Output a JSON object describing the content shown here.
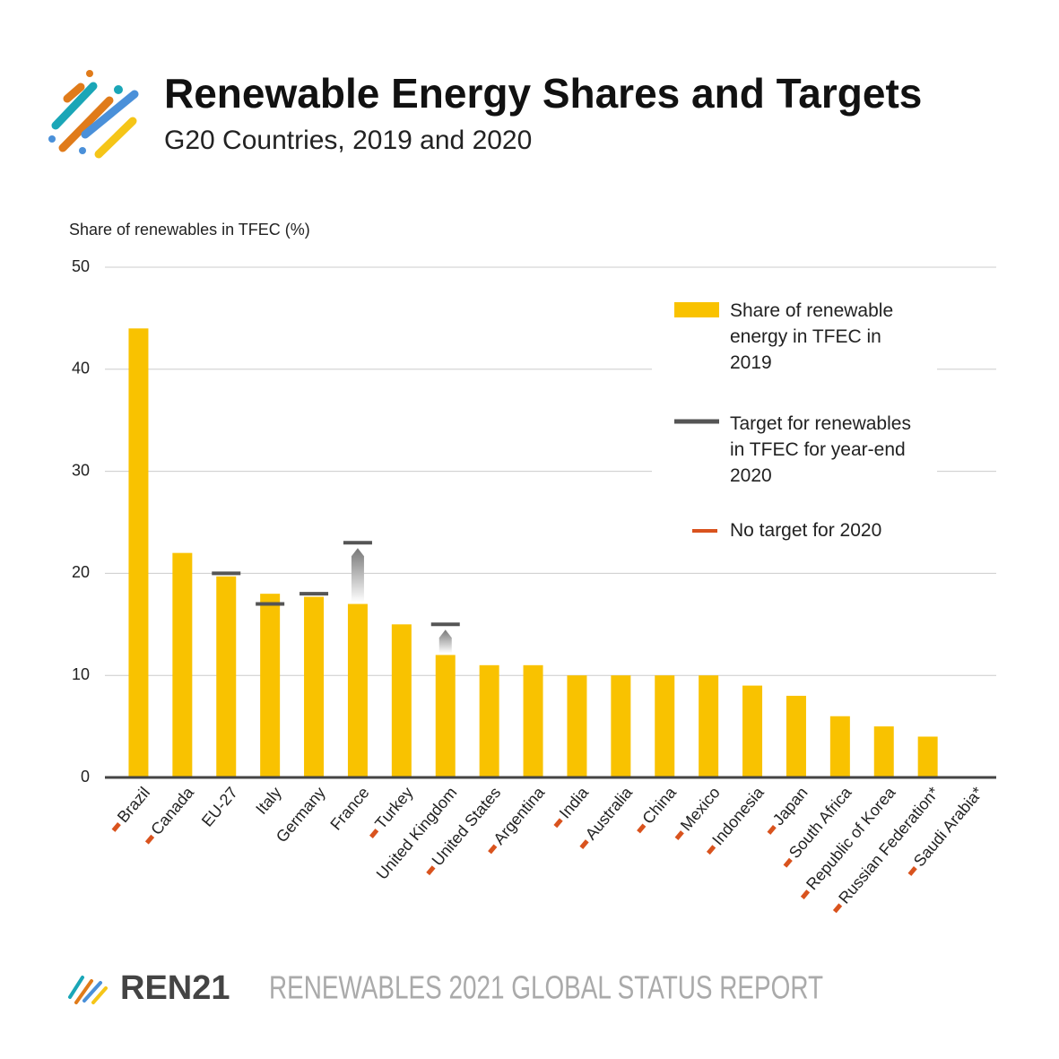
{
  "chart_data": {
    "type": "bar",
    "title": "Renewable Energy Shares and Targets",
    "subtitle": "G20 Countries, 2019 and 2020",
    "y_label": "Share of renewables in TFEC (%)",
    "categories": [
      "Brazil",
      "Canada",
      "EU-27",
      "Italy",
      "Germany",
      "France",
      "Turkey",
      "United Kingdom",
      "United States",
      "Argentina",
      "India",
      "Australia",
      "China",
      "Mexico",
      "Indonesia",
      "Japan",
      "South Africa",
      "Republic of Korea",
      "Russian Federation*",
      "Saudi Arabia*"
    ],
    "series": [
      {
        "name": "Share of renewable energy in TFEC in 2019",
        "color": "#f9c200",
        "values": [
          44,
          22,
          19.7,
          18,
          17.7,
          17,
          15,
          12,
          11,
          11,
          10,
          10,
          10,
          10,
          9,
          8,
          6,
          5,
          4,
          null
        ]
      },
      {
        "name": "Target for renewables in TFEC for year-end 2020",
        "color": "#555555",
        "values": [
          null,
          null,
          20,
          17,
          18,
          23,
          null,
          15,
          null,
          null,
          null,
          null,
          null,
          null,
          null,
          null,
          null,
          null,
          null,
          null
        ]
      }
    ],
    "no_target": {
      "name": "No target for 2020",
      "color": "#d9531e"
    },
    "ylim": [
      0,
      50
    ],
    "yticks": [
      0,
      10,
      20,
      30,
      40,
      50
    ],
    "grid": true,
    "footer": {
      "brand": "REN21",
      "report": "RENEWABLES 2021 GLOBAL STATUS REPORT"
    }
  }
}
